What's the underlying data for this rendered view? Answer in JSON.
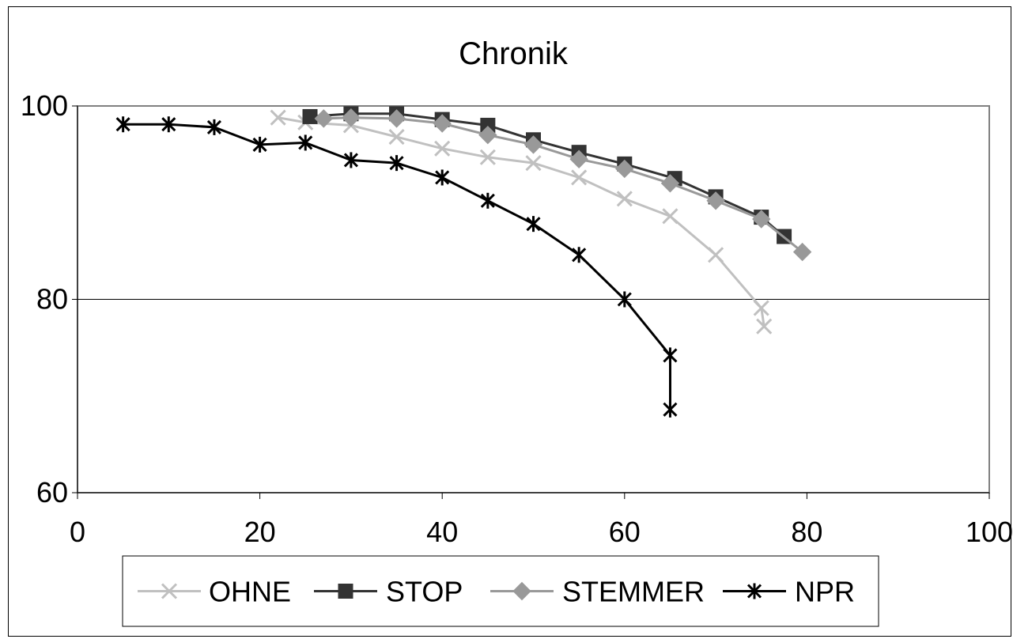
{
  "chart_data": {
    "type": "line",
    "title": "Chronik",
    "xlabel": "",
    "ylabel": "",
    "xlim": [
      0,
      100
    ],
    "ylim": [
      60,
      100
    ],
    "x_ticks": [
      "0",
      "20",
      "40",
      "60",
      "80",
      "100"
    ],
    "y_ticks": [
      "60",
      "80",
      "100"
    ],
    "grid": "horizontal major gridlines",
    "legend_position": "bottom",
    "series": [
      {
        "name": "OHNE",
        "color": "#c0c0c0",
        "marker": "x",
        "points": [
          [
            22,
            98.8
          ],
          [
            25,
            98.3
          ],
          [
            30,
            98.0
          ],
          [
            35,
            96.8
          ],
          [
            40,
            95.6
          ],
          [
            45,
            94.7
          ],
          [
            50,
            94.1
          ],
          [
            55,
            92.6
          ],
          [
            60,
            90.4
          ],
          [
            65,
            88.6
          ],
          [
            70,
            84.6
          ],
          [
            75,
            79.1
          ],
          [
            75.3,
            77.2
          ]
        ]
      },
      {
        "name": "STOP",
        "color": "#333333",
        "marker": "square",
        "points": [
          [
            25.5,
            98.9
          ],
          [
            30,
            99.2
          ],
          [
            35,
            99.2
          ],
          [
            40,
            98.6
          ],
          [
            45,
            98.0
          ],
          [
            50,
            96.5
          ],
          [
            55,
            95.2
          ],
          [
            60,
            94.0
          ],
          [
            65.5,
            92.5
          ],
          [
            70,
            90.6
          ],
          [
            75,
            88.5
          ],
          [
            77.5,
            86.5
          ]
        ]
      },
      {
        "name": "STEMMER",
        "color": "#999999",
        "marker": "diamond",
        "points": [
          [
            27,
            98.7
          ],
          [
            30,
            98.8
          ],
          [
            35,
            98.7
          ],
          [
            40,
            98.2
          ],
          [
            45,
            97.0
          ],
          [
            50,
            96.0
          ],
          [
            55,
            94.5
          ],
          [
            60,
            93.5
          ],
          [
            65,
            92.0
          ],
          [
            70,
            90.2
          ],
          [
            75,
            88.3
          ],
          [
            79.5,
            84.9
          ]
        ]
      },
      {
        "name": "NPR",
        "color": "#000000",
        "marker": "asterisk",
        "points": [
          [
            5,
            98.1
          ],
          [
            10,
            98.1
          ],
          [
            15,
            97.8
          ],
          [
            20,
            96.0
          ],
          [
            25,
            96.2
          ],
          [
            30,
            94.4
          ],
          [
            35,
            94.1
          ],
          [
            40,
            92.6
          ],
          [
            45,
            90.2
          ],
          [
            50,
            87.8
          ],
          [
            55,
            84.6
          ],
          [
            60,
            80.0
          ],
          [
            65,
            74.2
          ],
          [
            65,
            68.6
          ]
        ]
      }
    ]
  }
}
